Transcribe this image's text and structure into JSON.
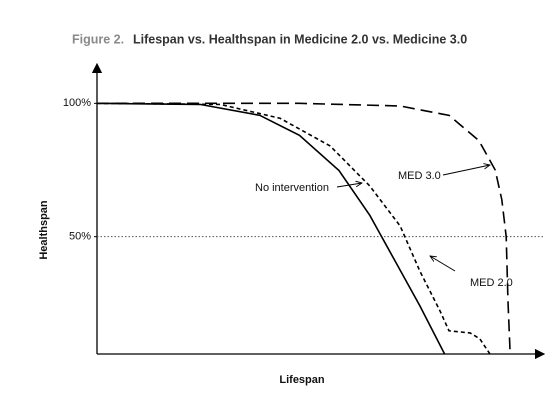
{
  "chart_data": {
    "type": "line",
    "figure_label": "Figure 2.",
    "title": "Lifespan vs. Healthspan in Medicine 2.0 vs. Medicine 3.0",
    "x_label": "Lifespan",
    "y_label": "Healthspan",
    "xlim": [
      0,
      100
    ],
    "ylim": [
      6,
      114
    ],
    "yticks": [
      {
        "value": 100,
        "label": "100%"
      },
      {
        "value": 50,
        "label": "50%"
      }
    ],
    "reference_line": {
      "y": 50,
      "style": "dotted"
    },
    "series": [
      {
        "name": "No intervention",
        "color": "#000000",
        "style": "solid",
        "x": [
          0,
          23.4,
          37,
          46,
          55,
          62,
          67.7,
          73.4,
          79
        ],
        "values": [
          100,
          99.6,
          95.5,
          88,
          74.8,
          58,
          41,
          24,
          6
        ]
      },
      {
        "name": "MED 2.0",
        "color": "#000000",
        "style": "short-dash",
        "x": [
          0,
          28,
          41.6,
          53,
          62,
          68.9,
          73.4,
          78,
          80,
          84.8,
          87,
          89.3
        ],
        "values": [
          100,
          99.6,
          94.4,
          84,
          69,
          54,
          37,
          22,
          14.7,
          13.9,
          11.7,
          6
        ]
      },
      {
        "name": "MED 3.0",
        "color": "#000000",
        "style": "long-dash",
        "x": [
          0,
          46,
          68.9,
          80,
          86.8,
          90.5,
          92,
          93,
          93.4,
          93.9
        ],
        "values": [
          100,
          100,
          99,
          95.5,
          86,
          75,
          63.9,
          50,
          26,
          6
        ]
      }
    ]
  }
}
